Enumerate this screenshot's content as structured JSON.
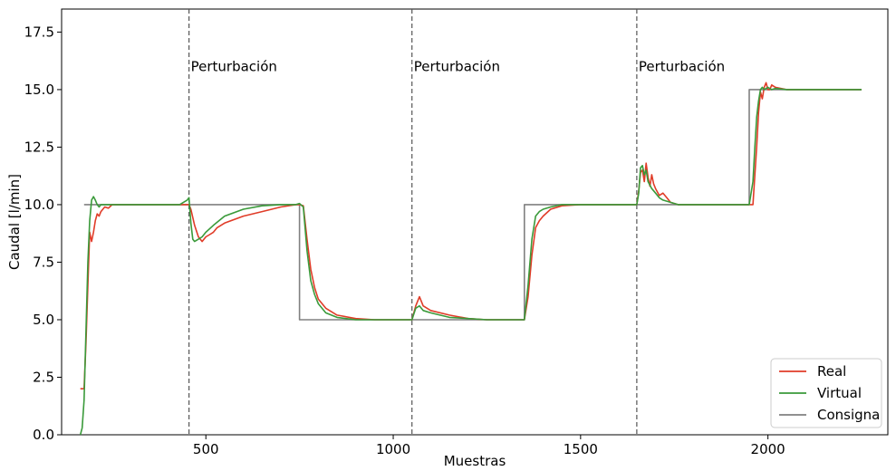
{
  "chart_data": {
    "type": "line",
    "title": "",
    "xlabel": "Muestras",
    "ylabel": "Caudal [l/min]",
    "xlim": [
      115,
      2320
    ],
    "ylim": [
      0,
      18.5
    ],
    "xticks": [
      500,
      1000,
      1500,
      2000
    ],
    "yticks": [
      0.0,
      2.5,
      5.0,
      7.5,
      10.0,
      12.5,
      15.0,
      17.5
    ],
    "xtick_labels": [
      "500",
      "1000",
      "1500",
      "2000"
    ],
    "ytick_labels": [
      "0.0",
      "2.5",
      "5.0",
      "7.5",
      "10.0",
      "12.5",
      "15.0",
      "17.5"
    ],
    "grid": false,
    "legend_position": "bottom-right",
    "annotations": [
      {
        "x": 455,
        "text": "Perturbación"
      },
      {
        "x": 1050,
        "text": "Perturbación"
      },
      {
        "x": 1650,
        "text": "Perturbación"
      }
    ],
    "series": [
      {
        "name": "Real",
        "color": "#e03c28",
        "x": [
          165,
          175,
          180,
          185,
          190,
          195,
          200,
          205,
          210,
          215,
          220,
          230,
          240,
          250,
          270,
          300,
          350,
          400,
          430,
          450,
          455,
          460,
          470,
          480,
          490,
          500,
          510,
          520,
          530,
          550,
          600,
          650,
          700,
          740,
          750,
          760,
          770,
          780,
          790,
          800,
          820,
          850,
          900,
          950,
          1000,
          1040,
          1050,
          1060,
          1070,
          1080,
          1100,
          1150,
          1200,
          1250,
          1300,
          1340,
          1350,
          1360,
          1370,
          1380,
          1390,
          1400,
          1420,
          1450,
          1500,
          1550,
          1600,
          1645,
          1650,
          1655,
          1660,
          1665,
          1670,
          1675,
          1680,
          1685,
          1690,
          1695,
          1700,
          1710,
          1720,
          1730,
          1740,
          1760,
          1800,
          1850,
          1900,
          1940,
          1950,
          1960,
          1970,
          1975,
          1980,
          1985,
          1990,
          1995,
          2000,
          2005,
          2010,
          2020,
          2050,
          2100,
          2150,
          2200,
          2250
        ],
        "y": [
          2.0,
          2.0,
          4.0,
          6.5,
          8.8,
          8.4,
          8.8,
          9.3,
          9.6,
          9.5,
          9.7,
          9.9,
          9.85,
          10.0,
          10.0,
          10.0,
          10.0,
          10.0,
          10.0,
          10.0,
          10.0,
          9.8,
          9.1,
          8.6,
          8.4,
          8.6,
          8.7,
          8.8,
          9.0,
          9.2,
          9.5,
          9.7,
          9.9,
          10.0,
          10.0,
          9.95,
          8.5,
          7.2,
          6.4,
          5.9,
          5.5,
          5.2,
          5.05,
          5.0,
          5.0,
          5.0,
          5.0,
          5.6,
          6.0,
          5.6,
          5.4,
          5.2,
          5.05,
          5.0,
          5.0,
          5.0,
          5.0,
          6.0,
          7.8,
          9.0,
          9.3,
          9.5,
          9.8,
          9.95,
          10.0,
          10.0,
          10.0,
          10.0,
          10.0,
          10.6,
          11.4,
          11.5,
          11.0,
          11.8,
          11.2,
          10.8,
          11.3,
          10.9,
          10.7,
          10.4,
          10.5,
          10.3,
          10.1,
          10.0,
          10.0,
          10.0,
          10.0,
          10.0,
          10.0,
          10.0,
          12.5,
          14.0,
          14.9,
          14.6,
          15.1,
          15.3,
          15.0,
          15.0,
          15.2,
          15.1,
          15.0,
          15.0,
          15.0,
          15.0,
          15.0
        ]
      },
      {
        "name": "Virtual",
        "color": "#3a9a3a",
        "x": [
          165,
          170,
          175,
          180,
          185,
          190,
          195,
          200,
          205,
          210,
          215,
          220,
          230,
          240,
          250,
          270,
          300,
          350,
          400,
          430,
          450,
          455,
          460,
          465,
          470,
          480,
          490,
          500,
          520,
          550,
          600,
          650,
          700,
          740,
          750,
          760,
          770,
          780,
          790,
          800,
          820,
          850,
          900,
          950,
          1000,
          1040,
          1050,
          1060,
          1070,
          1080,
          1100,
          1150,
          1200,
          1250,
          1300,
          1340,
          1350,
          1360,
          1370,
          1380,
          1390,
          1400,
          1420,
          1450,
          1500,
          1550,
          1600,
          1645,
          1650,
          1655,
          1660,
          1665,
          1670,
          1675,
          1680,
          1690,
          1700,
          1710,
          1720,
          1740,
          1760,
          1800,
          1850,
          1900,
          1940,
          1950,
          1960,
          1965,
          1970,
          1975,
          1980,
          1985,
          1990,
          2000,
          2010,
          2020,
          2050,
          2100,
          2150,
          2200,
          2250
        ],
        "y": [
          0.0,
          0.3,
          1.5,
          4.5,
          7.5,
          9.3,
          10.2,
          10.35,
          10.2,
          10.0,
          9.9,
          10.0,
          10.0,
          10.0,
          10.0,
          10.0,
          10.0,
          10.0,
          10.0,
          10.0,
          10.2,
          10.3,
          9.2,
          8.5,
          8.4,
          8.5,
          8.6,
          8.8,
          9.1,
          9.5,
          9.8,
          9.95,
          10.0,
          10.0,
          10.05,
          9.9,
          8.0,
          6.7,
          6.1,
          5.7,
          5.3,
          5.1,
          5.0,
          5.0,
          5.0,
          5.0,
          5.0,
          5.5,
          5.6,
          5.4,
          5.3,
          5.1,
          5.05,
          5.0,
          5.0,
          5.0,
          5.0,
          6.5,
          8.5,
          9.5,
          9.7,
          9.8,
          9.9,
          10.0,
          10.0,
          10.0,
          10.0,
          10.0,
          10.0,
          10.5,
          11.6,
          11.7,
          11.3,
          11.5,
          11.0,
          10.7,
          10.5,
          10.3,
          10.2,
          10.1,
          10.0,
          10.0,
          10.0,
          10.0,
          10.0,
          10.0,
          11.0,
          12.5,
          13.8,
          14.5,
          15.0,
          15.1,
          15.0,
          15.1,
          15.0,
          15.05,
          15.0,
          15.0,
          15.0,
          15.0,
          15.0
        ]
      },
      {
        "name": "Consigna",
        "color": "#808080",
        "x": [
          175,
          750,
          750,
          1350,
          1350,
          1950,
          1950,
          2250
        ],
        "y": [
          10.0,
          10.0,
          5.0,
          5.0,
          10.0,
          10.0,
          15.0,
          15.0
        ]
      }
    ]
  }
}
